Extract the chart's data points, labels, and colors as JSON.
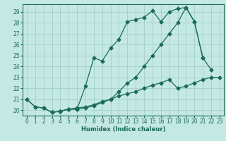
{
  "xlabel": "Humidex (Indice chaleur)",
  "bg_color": "#c4e8e4",
  "grid_color": "#a8d4d0",
  "line_color": "#1a6b5a",
  "xlim": [
    -0.5,
    23.5
  ],
  "ylim": [
    19.5,
    29.7
  ],
  "xticks": [
    0,
    1,
    2,
    3,
    4,
    5,
    6,
    7,
    8,
    9,
    10,
    11,
    12,
    13,
    14,
    15,
    16,
    17,
    18,
    19,
    20,
    21,
    22,
    23
  ],
  "yticks": [
    20,
    21,
    22,
    23,
    24,
    25,
    26,
    27,
    28,
    29
  ],
  "line1_x": [
    0,
    1,
    2,
    3,
    4,
    5,
    6,
    7,
    8,
    9,
    10,
    11,
    12,
    13,
    14,
    15,
    16,
    17,
    18,
    19,
    20,
    21,
    22,
    23
  ],
  "line1_y": [
    21.0,
    20.3,
    20.2,
    19.8,
    19.9,
    20.1,
    20.2,
    20.3,
    20.5,
    20.8,
    21.0,
    21.3,
    21.5,
    21.7,
    22.0,
    22.3,
    22.5,
    22.8,
    22.0,
    22.2,
    22.5,
    22.8,
    23.0,
    23.0
  ],
  "line2_x": [
    0,
    1,
    2,
    3,
    4,
    5,
    6,
    7,
    8,
    9,
    10,
    11,
    12,
    13,
    14,
    15,
    16,
    17,
    18,
    19,
    20,
    21,
    22
  ],
  "line2_y": [
    21.0,
    20.3,
    20.2,
    19.8,
    19.9,
    20.1,
    20.1,
    22.2,
    24.8,
    24.5,
    25.7,
    26.5,
    28.1,
    28.3,
    28.5,
    29.1,
    28.1,
    29.0,
    29.3,
    29.4,
    28.1,
    24.8,
    23.7
  ],
  "line3_x": [
    4,
    5,
    6,
    7,
    8,
    9,
    10,
    11,
    12,
    13,
    14,
    15,
    16,
    17,
    18,
    19,
    20,
    21
  ],
  "line3_y": [
    19.9,
    20.1,
    20.1,
    20.2,
    20.4,
    20.7,
    21.0,
    21.7,
    22.5,
    23.0,
    24.0,
    25.0,
    26.0,
    27.0,
    28.0,
    29.4,
    28.1,
    24.8
  ]
}
